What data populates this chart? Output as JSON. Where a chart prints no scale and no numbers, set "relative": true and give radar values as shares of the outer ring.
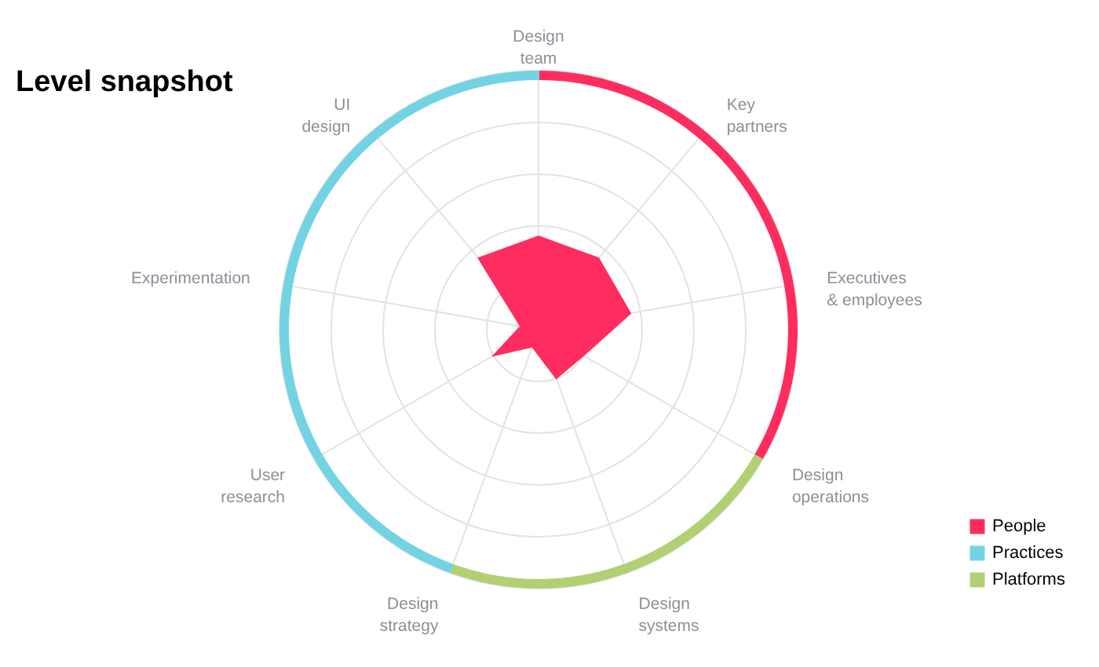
{
  "chart_data": [
    {
      "type": "radar",
      "title": "Level snapshot",
      "categories": [
        "Design team",
        "Key partners",
        "Executives & employees",
        "Design operations",
        "Design systems",
        "Design strategy",
        "User research",
        "Experimentation",
        "UI design"
      ],
      "relative": true,
      "grid": true,
      "series": [
        {
          "color": "#ff2d5f",
          "values": [
            0.36,
            0.36,
            0.36,
            0.2,
            0.2,
            0.07,
            0.2,
            0.07,
            0.36
          ]
        }
      ]
    },
    {
      "type": "donut",
      "categories": [
        "People",
        "Practices",
        "Platforms"
      ],
      "values": [
        33.3,
        44.5,
        22.2
      ],
      "colors": [
        "#ff2d5f",
        "#72d3e3",
        "#b2cf74"
      ],
      "legend": "bottom right"
    }
  ]
}
